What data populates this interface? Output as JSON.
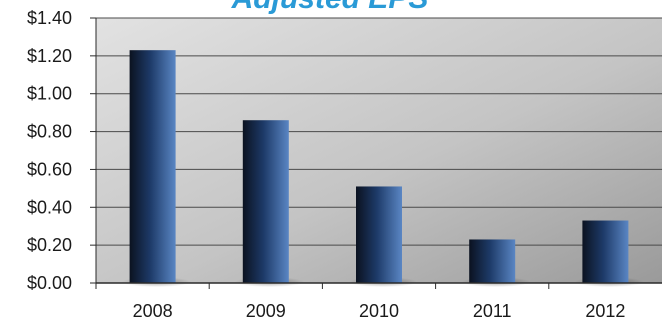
{
  "chart_data": {
    "type": "bar",
    "title": "Adjusted EPS",
    "categories": [
      "2008",
      "2009",
      "2010",
      "2011",
      "2012"
    ],
    "values": [
      1.23,
      0.86,
      0.51,
      0.23,
      0.33
    ],
    "ylim": [
      0,
      1.4
    ],
    "yticks": [
      0,
      0.2,
      0.4,
      0.6,
      0.8,
      1.0,
      1.2,
      1.4
    ],
    "ytick_labels": [
      "$0.00",
      "$0.20",
      "$0.40",
      "$0.60",
      "$0.80",
      "$1.00",
      "$1.20",
      "$1.40"
    ],
    "grid": true,
    "colors": {
      "bar_dark": "#0b1220",
      "bar_mid": "#23457a",
      "bar_light": "#5a86c4",
      "plot_bg_light": "#dcdcdc",
      "plot_bg_dark": "#9c9c9c",
      "gridline": "#4a4a4a",
      "title": "#2a9ad6"
    }
  }
}
